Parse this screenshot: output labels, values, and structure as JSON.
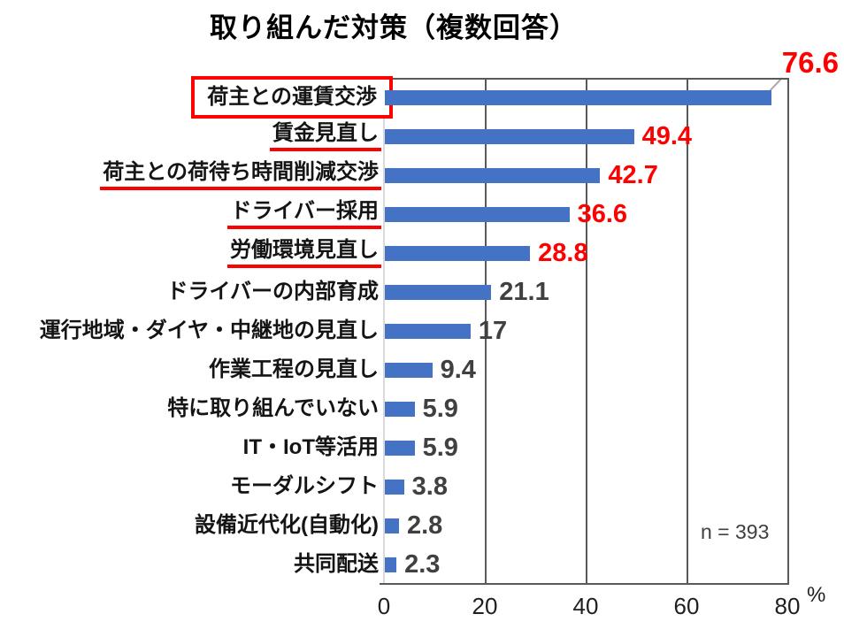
{
  "title": "取り組んだ対策（複数回答）",
  "colors": {
    "bar": "#4472C4",
    "highlight_red": "#FF0000",
    "value_dark": "#404040",
    "gridline": "#595959",
    "left_axis_light": "#D9D9D9",
    "leader_line": "#A6A6A6"
  },
  "chart_data": {
    "type": "bar",
    "orientation": "horizontal",
    "title": "取り組んだ対策（複数回答）",
    "categories": [
      "荷主との運賃交渉",
      "賃金見直し",
      "荷主との荷待ち時間削減交渉",
      "ドライバー採用",
      "労働環境見直し",
      "ドライバーの内部育成",
      "運行地域・ダイヤ・中継地の見直し",
      "作業工程の見直し",
      "特に取り組んでいない",
      "IT・IoT等活用",
      "モーダルシフト",
      "設備近代化(自動化)",
      "共同配送"
    ],
    "values": [
      76.6,
      49.4,
      42.7,
      36.6,
      28.8,
      21.1,
      17,
      9.4,
      5.9,
      5.9,
      3.8,
      2.8,
      2.3
    ],
    "value_display": [
      "76.6",
      "49.4",
      "42.7",
      "36.6",
      "28.8",
      "21.1",
      "17",
      "9.4",
      "5.9",
      "5.9",
      "3.8",
      "2.8",
      "2.3"
    ],
    "value_red_highlight": [
      true,
      true,
      true,
      true,
      true,
      false,
      false,
      false,
      false,
      false,
      false,
      false,
      false
    ],
    "label_decoration": [
      "box",
      "underline",
      "underline",
      "underline",
      "underline",
      "none",
      "none",
      "none",
      "none",
      "none",
      "none",
      "none",
      "none"
    ],
    "xlim": [
      0,
      80
    ],
    "x_ticks": [
      "0",
      "20",
      "40",
      "60",
      "80"
    ],
    "x_tick_values": [
      0,
      20,
      40,
      60,
      80
    ],
    "x_unit": "%",
    "sample_note": "n = 393",
    "grid": true,
    "legend": "none"
  }
}
